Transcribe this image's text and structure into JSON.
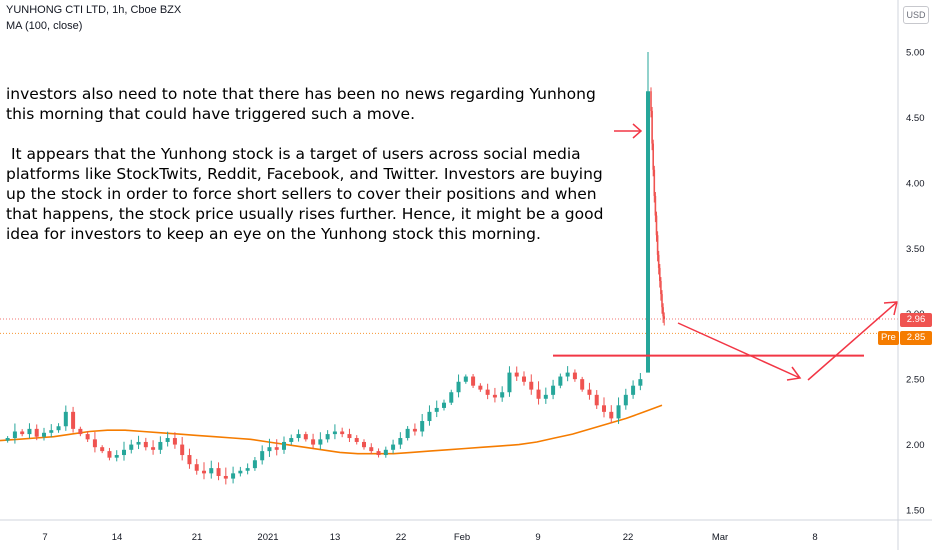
{
  "header": {
    "symbol_line": "YUNHONG CTI LTD, 1h, Cboe BZX",
    "indicator_line": "MA (100, close)"
  },
  "note": {
    "paragraph1": "investors also need to note that there has been no news regarding Yunhong this morning that could have triggered such a move.",
    "paragraph2": " It appears that the Yunhong stock is a target of users across social media platforms like StockTwits, Reddit, Facebook, and Twitter. Investors are buying up the stock in order to force short sellers to cover their positions and when that happens, the stock price usually rises further. Hence, it might be a good idea for investors to keep an eye on the Yunhong stock this morning."
  },
  "currency_label": "USD",
  "price_badges": {
    "last": "2.96",
    "pre_label": "Pre",
    "pre_value": "2.85"
  },
  "colors": {
    "up": "#26a69a",
    "down": "#ef5350",
    "ma": "#f57c00",
    "annotation": "#f23645"
  },
  "chart_data": {
    "type": "candlestick",
    "y_axis": {
      "ticks": [
        "5.00",
        "4.50",
        "4.00",
        "3.50",
        "3.00",
        "2.50",
        "2.00",
        "1.50"
      ],
      "range": [
        1.42,
        5.03
      ]
    },
    "x_axis": {
      "ticks": [
        "7",
        "14",
        "21",
        "2021",
        "13",
        "22",
        "Feb",
        "9",
        "22",
        "Mar",
        "8"
      ]
    },
    "indicator": "MA (100, close)",
    "price_path": [
      2.05,
      2.1,
      2.08,
      2.12,
      2.06,
      2.09,
      2.11,
      2.14,
      2.25,
      2.12,
      2.08,
      2.04,
      1.98,
      1.95,
      1.9,
      1.92,
      1.96,
      2.0,
      2.02,
      1.98,
      1.96,
      2.02,
      2.05,
      2.0,
      1.92,
      1.85,
      1.8,
      1.78,
      1.82,
      1.76,
      1.74,
      1.78,
      1.8,
      1.82,
      1.88,
      1.95,
      1.98,
      1.96,
      2.02,
      2.05,
      2.08,
      2.04,
      2.0,
      2.04,
      2.08,
      2.1,
      2.08,
      2.05,
      2.02,
      1.98,
      1.95,
      1.92,
      1.96,
      2.0,
      2.05,
      2.12,
      2.1,
      2.18,
      2.25,
      2.28,
      2.32,
      2.4,
      2.48,
      2.52,
      2.45,
      2.42,
      2.38,
      2.36,
      2.4,
      2.55,
      2.52,
      2.48,
      2.42,
      2.35,
      2.38,
      2.45,
      2.52,
      2.55,
      2.5,
      2.42,
      2.38,
      2.3,
      2.25,
      2.2,
      2.3,
      2.38,
      2.45,
      2.5
    ],
    "spike": {
      "open": 2.55,
      "high": 5.0,
      "low": 3.45,
      "close": 4.7
    },
    "decline_path": [
      4.7,
      4.55,
      4.3,
      4.1,
      3.9,
      3.75,
      3.6,
      3.45,
      3.35,
      3.25,
      3.15,
      3.05,
      2.98,
      2.96
    ],
    "ma_path": [
      2.03,
      2.04,
      2.05,
      2.06,
      2.08,
      2.1,
      2.11,
      2.11,
      2.1,
      2.09,
      2.08,
      2.07,
      2.06,
      2.05,
      2.04,
      2.02,
      2.0,
      1.98,
      1.96,
      1.94,
      1.93,
      1.93,
      1.93,
      1.94,
      1.95,
      1.96,
      1.97,
      1.98,
      1.99,
      2.0,
      2.02,
      2.05,
      2.08,
      2.12,
      2.16,
      2.2,
      2.25,
      2.3
    ],
    "last_price": 2.96,
    "premarket_price": 2.85,
    "resistance_level": 2.68
  }
}
